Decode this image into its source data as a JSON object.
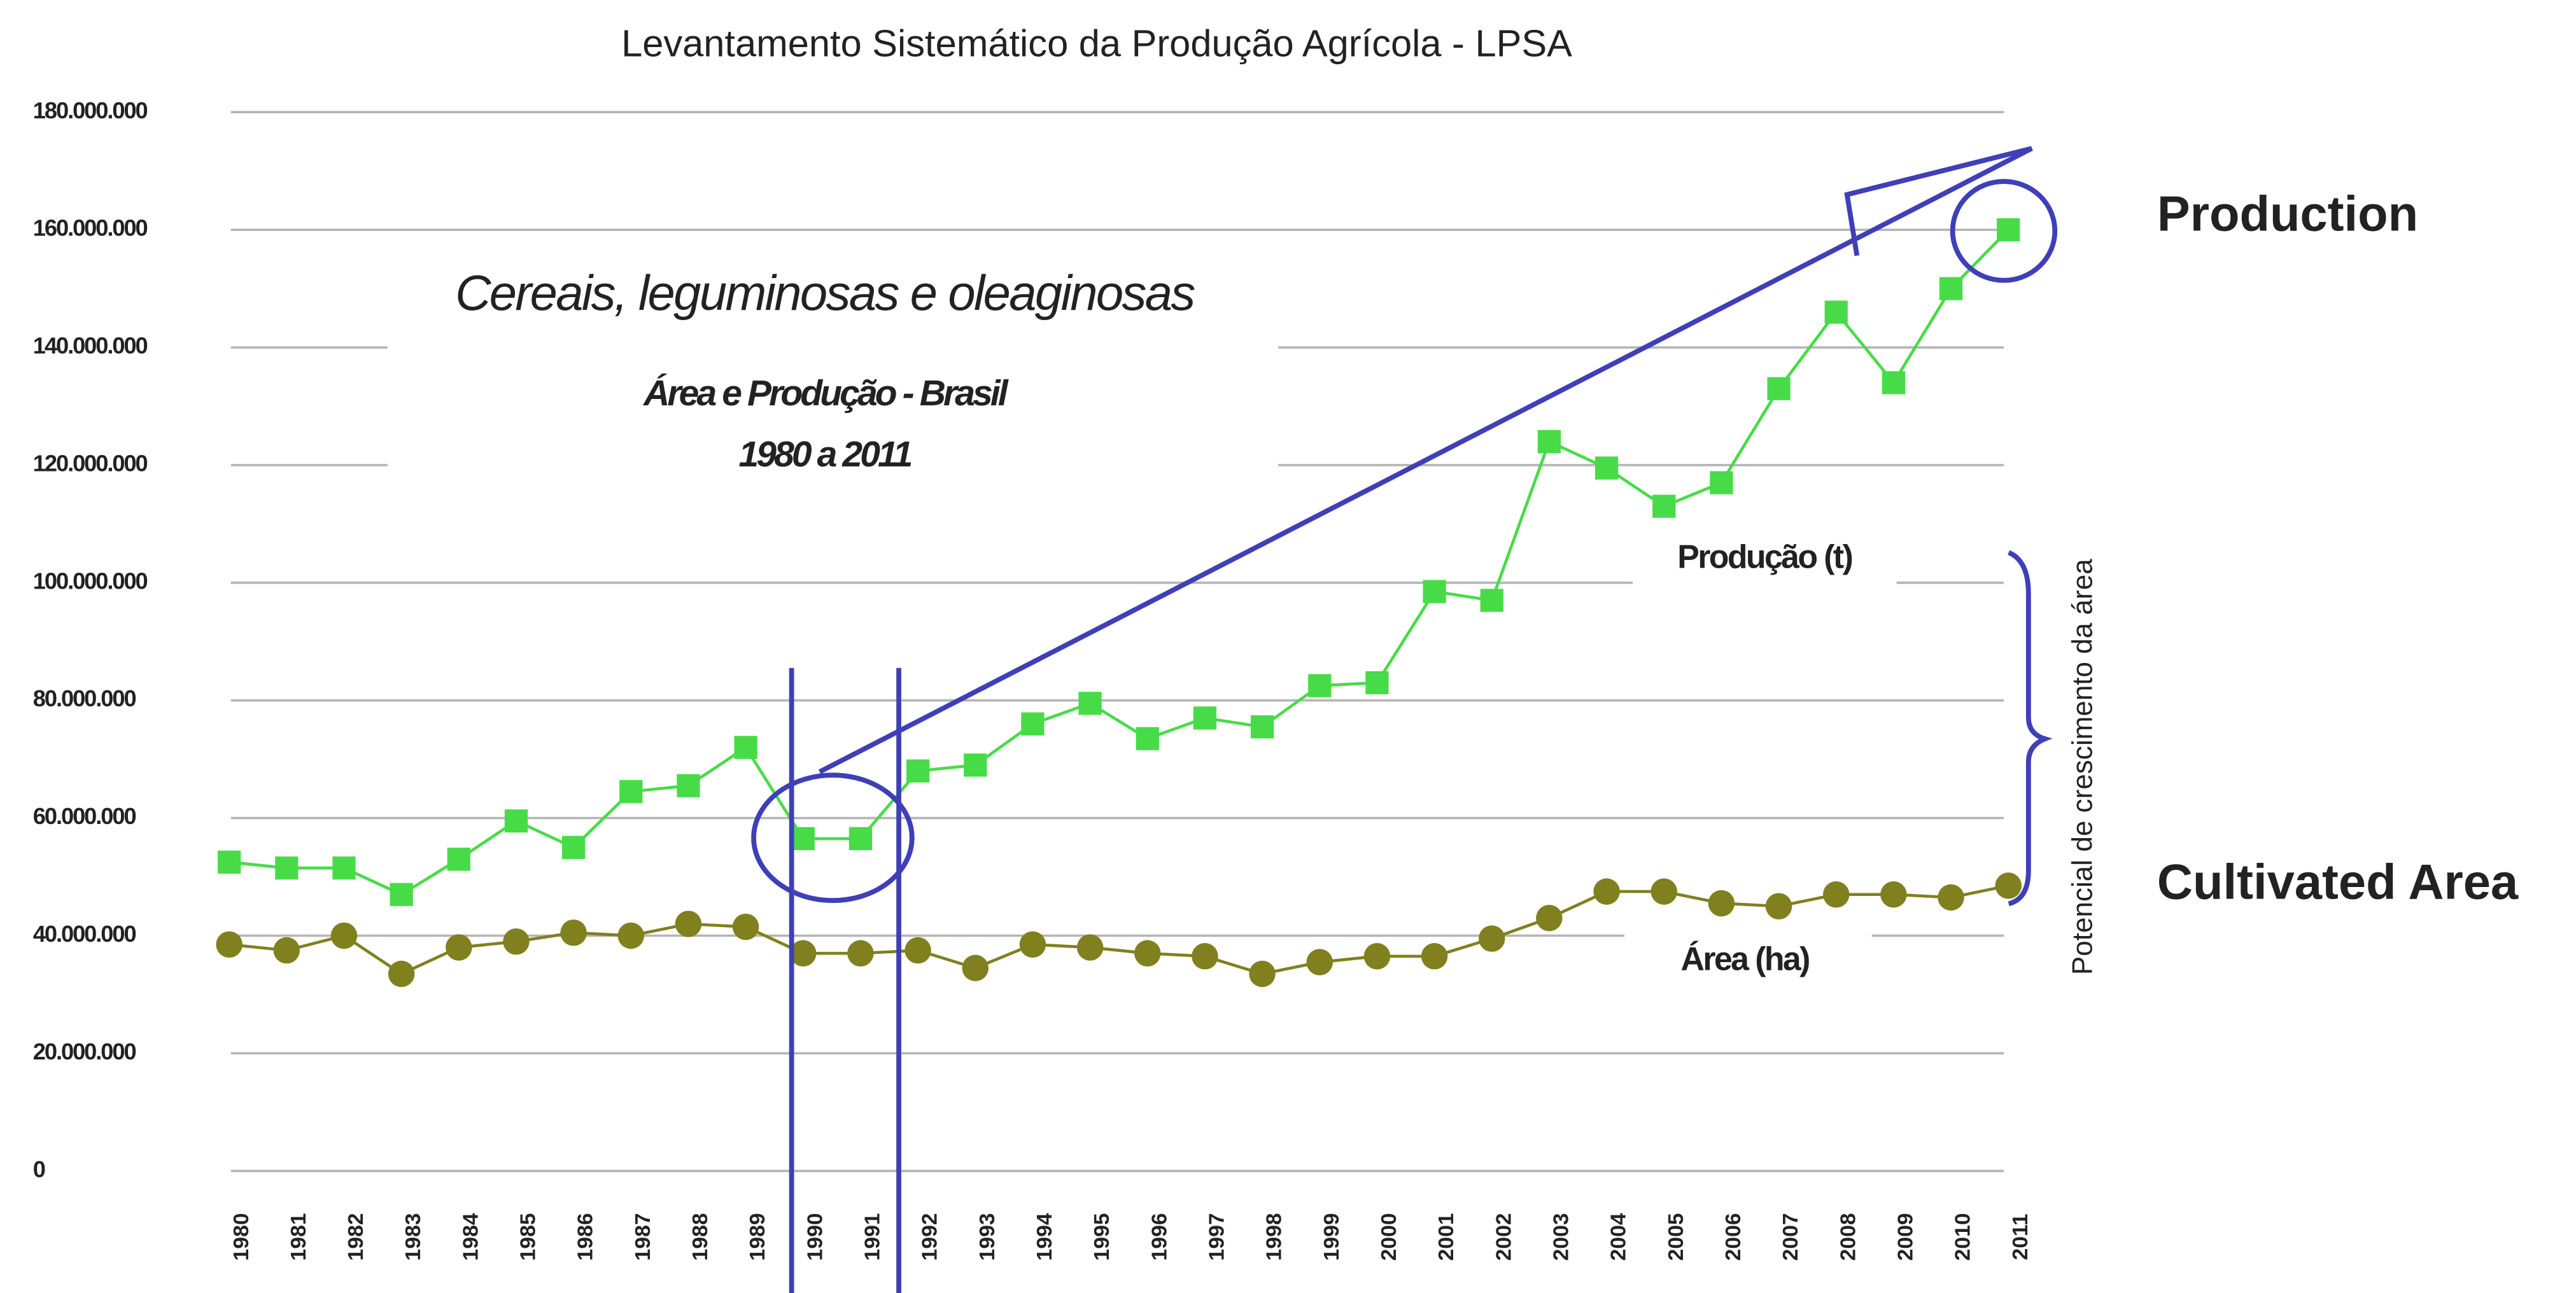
{
  "chart_data": {
    "type": "line",
    "title": "Levantamento Sistemático da Produção Agrícola - LPSA",
    "subtitle": "Cereais, leguminosas e oleaginosas",
    "annotations": [
      "Área e Produção - Brasil",
      "1980 a 2011",
      "Potencial de crescimento da área",
      "Production",
      "Cultivated Area"
    ],
    "categories": [
      "1980",
      "1981",
      "1982",
      "1983",
      "1984",
      "1985",
      "1986",
      "1987",
      "1988",
      "1989",
      "1990",
      "1991",
      "1992",
      "1993",
      "1994",
      "1995",
      "1996",
      "1997",
      "1998",
      "1999",
      "2000",
      "2001",
      "2002",
      "2003",
      "2004",
      "2005",
      "2006",
      "2007",
      "2008",
      "2009",
      "2010",
      "2011"
    ],
    "series": [
      {
        "name": "Produção (t)",
        "color": "#47dc47",
        "values": [
          52500000,
          51500000,
          51500000,
          47000000,
          53000000,
          59500000,
          55000000,
          64500000,
          65500000,
          72000000,
          56500000,
          56500000,
          68000000,
          69000000,
          76000000,
          79500000,
          73500000,
          77000000,
          75500000,
          82500000,
          83000000,
          98500000,
          97000000,
          124000000,
          119500000,
          113000000,
          117000000,
          133000000,
          146000000,
          134000000,
          150000000,
          160000000
        ]
      },
      {
        "name": "Área (ha)",
        "color": "#80801e",
        "values": [
          38500000,
          37500000,
          40000000,
          33500000,
          38000000,
          39000000,
          40500000,
          40000000,
          42000000,
          41500000,
          37000000,
          37000000,
          37500000,
          34500000,
          38500000,
          38000000,
          37000000,
          36500000,
          33500000,
          35500000,
          36500000,
          36500000,
          39500000,
          43000000,
          47500000,
          47500000,
          45500000,
          45000000,
          47000000,
          47000000,
          46500000,
          48500000
        ]
      }
    ],
    "ylim": [
      0,
      180000000
    ],
    "yticks": [
      0,
      {
        "value": 20000000,
        "label": "20.000.000"
      },
      {
        "value": 40000000,
        "label": "40.000.000"
      },
      {
        "value": 60000000,
        "label": "60.000.000"
      },
      {
        "value": 80000000,
        "label": "80.000.000"
      },
      {
        "value": 100000000,
        "label": "100.000.000"
      },
      {
        "value": 120000000,
        "label": "120.000.000"
      },
      {
        "value": 140000000,
        "label": "140.000.000"
      },
      {
        "value": 160000000,
        "label": "160.000.000"
      },
      {
        "value": 180000000,
        "label": "180.000.000"
      }
    ],
    "grid": true
  }
}
